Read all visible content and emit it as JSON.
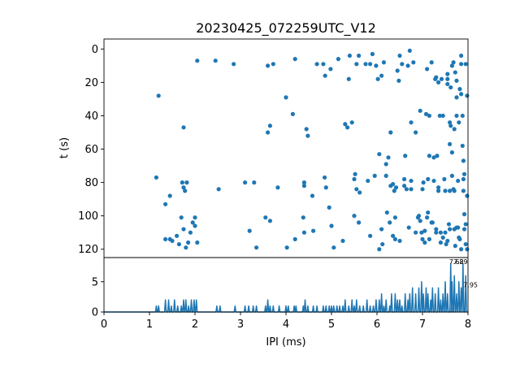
{
  "chart_data": [
    {
      "type": "scatter",
      "title": "20230425_072259UTC_V12",
      "xlabel": "",
      "ylabel": "t (s)",
      "xlim": [
        0,
        8
      ],
      "ylim": [
        125,
        -6
      ],
      "y_inverted": true,
      "yticks": [
        "0",
        "20",
        "40",
        "60",
        "80",
        "100",
        "120"
      ],
      "color": "#1f77b4",
      "points": [
        [
          1.2,
          28
        ],
        [
          1.15,
          77
        ],
        [
          1.35,
          93
        ],
        [
          1.45,
          88
        ],
        [
          1.7,
          101
        ],
        [
          1.75,
          108
        ],
        [
          1.6,
          112
        ],
        [
          1.35,
          114
        ],
        [
          1.45,
          114
        ],
        [
          1.5,
          115
        ],
        [
          1.65,
          117
        ],
        [
          1.8,
          119
        ],
        [
          1.85,
          116
        ],
        [
          1.9,
          110
        ],
        [
          1.95,
          104
        ],
        [
          2.0,
          101
        ],
        [
          2.0,
          106
        ],
        [
          2.05,
          116
        ],
        [
          1.75,
          47
        ],
        [
          1.72,
          80
        ],
        [
          1.82,
          80
        ],
        [
          1.75,
          83
        ],
        [
          1.78,
          85
        ],
        [
          2.05,
          7
        ],
        [
          2.45,
          7
        ],
        [
          2.85,
          9
        ],
        [
          2.52,
          84
        ],
        [
          3.1,
          80
        ],
        [
          3.3,
          80
        ],
        [
          3.2,
          109
        ],
        [
          3.35,
          119
        ],
        [
          3.55,
          101
        ],
        [
          3.65,
          103
        ],
        [
          3.6,
          10
        ],
        [
          3.72,
          9
        ],
        [
          3.6,
          50
        ],
        [
          3.65,
          46
        ],
        [
          3.82,
          83
        ],
        [
          4.0,
          29
        ],
        [
          4.15,
          39
        ],
        [
          4.2,
          6
        ],
        [
          4.02,
          119
        ],
        [
          4.2,
          114
        ],
        [
          4.38,
          101
        ],
        [
          4.4,
          110
        ],
        [
          4.4,
          80
        ],
        [
          4.4,
          82
        ],
        [
          4.45,
          48
        ],
        [
          4.48,
          52
        ],
        [
          4.58,
          88
        ],
        [
          4.6,
          109
        ],
        [
          4.68,
          9
        ],
        [
          4.82,
          9
        ],
        [
          4.86,
          16
        ],
        [
          4.85,
          77
        ],
        [
          4.88,
          83
        ],
        [
          4.95,
          95
        ],
        [
          5.0,
          106
        ],
        [
          5.05,
          119
        ],
        [
          4.98,
          12
        ],
        [
          5.15,
          6
        ],
        [
          5.25,
          115
        ],
        [
          5.3,
          45
        ],
        [
          5.35,
          47
        ],
        [
          5.4,
          4
        ],
        [
          5.38,
          18
        ],
        [
          5.45,
          44
        ],
        [
          5.5,
          100
        ],
        [
          5.5,
          78
        ],
        [
          5.55,
          9
        ],
        [
          5.52,
          75
        ],
        [
          5.55,
          84
        ],
        [
          5.6,
          4
        ],
        [
          5.62,
          86
        ],
        [
          5.6,
          104
        ],
        [
          5.75,
          9
        ],
        [
          5.8,
          79
        ],
        [
          5.85,
          9
        ],
        [
          5.85,
          112
        ],
        [
          5.9,
          3
        ],
        [
          5.95,
          76
        ],
        [
          5.98,
          10
        ],
        [
          6.02,
          18
        ],
        [
          6.05,
          63
        ],
        [
          6.1,
          16
        ],
        [
          6.1,
          108
        ],
        [
          6.05,
          120
        ],
        [
          6.12,
          117
        ],
        [
          6.15,
          8
        ],
        [
          6.2,
          69
        ],
        [
          6.2,
          76
        ],
        [
          6.22,
          98
        ],
        [
          6.25,
          65
        ],
        [
          6.28,
          104
        ],
        [
          6.3,
          50
        ],
        [
          6.3,
          82
        ],
        [
          6.35,
          81
        ],
        [
          6.35,
          112
        ],
        [
          6.38,
          85
        ],
        [
          6.4,
          101
        ],
        [
          6.4,
          114
        ],
        [
          6.42,
          83
        ],
        [
          6.45,
          13
        ],
        [
          6.48,
          19
        ],
        [
          6.5,
          115
        ],
        [
          6.5,
          4
        ],
        [
          6.55,
          9
        ],
        [
          6.6,
          78
        ],
        [
          6.6,
          82
        ],
        [
          6.62,
          64
        ],
        [
          6.65,
          84
        ],
        [
          6.68,
          10
        ],
        [
          6.7,
          107
        ],
        [
          6.72,
          1
        ],
        [
          6.75,
          79
        ],
        [
          6.75,
          84
        ],
        [
          6.75,
          44
        ],
        [
          6.8,
          8
        ],
        [
          6.85,
          50
        ],
        [
          6.85,
          110
        ],
        [
          6.9,
          101
        ],
        [
          6.92,
          100
        ],
        [
          6.95,
          37
        ],
        [
          6.95,
          103
        ],
        [
          6.98,
          110
        ],
        [
          7.0,
          114
        ],
        [
          7.02,
          80
        ],
        [
          7.0,
          84
        ],
        [
          7.05,
          109
        ],
        [
          7.05,
          116
        ],
        [
          7.08,
          39
        ],
        [
          7.1,
          101
        ],
        [
          7.1,
          12
        ],
        [
          7.12,
          78
        ],
        [
          7.12,
          98
        ],
        [
          7.15,
          64
        ],
        [
          7.15,
          40
        ],
        [
          7.15,
          114
        ],
        [
          7.2,
          8
        ],
        [
          7.2,
          104
        ],
        [
          7.22,
          104
        ],
        [
          7.25,
          65
        ],
        [
          7.25,
          79
        ],
        [
          7.28,
          18
        ],
        [
          7.3,
          17
        ],
        [
          7.3,
          108
        ],
        [
          7.3,
          110
        ],
        [
          7.32,
          64
        ],
        [
          7.35,
          83
        ],
        [
          7.35,
          85
        ],
        [
          7.35,
          20
        ],
        [
          7.38,
          40
        ],
        [
          7.4,
          110
        ],
        [
          7.4,
          116
        ],
        [
          7.42,
          18
        ],
        [
          7.45,
          113
        ],
        [
          7.45,
          40
        ],
        [
          7.48,
          78
        ],
        [
          7.5,
          85
        ],
        [
          7.5,
          110
        ],
        [
          7.52,
          117
        ],
        [
          7.55,
          15
        ],
        [
          7.55,
          18
        ],
        [
          7.55,
          21
        ],
        [
          7.55,
          115
        ],
        [
          7.58,
          105
        ],
        [
          7.6,
          44
        ],
        [
          7.6,
          57
        ],
        [
          7.6,
          85
        ],
        [
          7.6,
          108
        ],
        [
          7.62,
          23
        ],
        [
          7.62,
          46
        ],
        [
          7.65,
          10
        ],
        [
          7.65,
          62
        ],
        [
          7.65,
          76
        ],
        [
          7.68,
          8
        ],
        [
          7.68,
          84
        ],
        [
          7.7,
          48
        ],
        [
          7.7,
          85
        ],
        [
          7.7,
          108
        ],
        [
          7.72,
          118
        ],
        [
          7.72,
          14
        ],
        [
          7.75,
          19
        ],
        [
          7.75,
          29
        ],
        [
          7.75,
          40
        ],
        [
          7.75,
          107
        ],
        [
          7.78,
          79
        ],
        [
          7.78,
          107
        ],
        [
          7.8,
          44
        ],
        [
          7.8,
          113
        ],
        [
          7.82,
          24
        ],
        [
          7.82,
          114
        ],
        [
          7.85,
          4
        ],
        [
          7.85,
          9
        ],
        [
          7.85,
          27
        ],
        [
          7.85,
          120
        ],
        [
          7.88,
          40
        ],
        [
          7.88,
          58
        ],
        [
          7.9,
          67
        ],
        [
          7.9,
          85
        ],
        [
          7.9,
          78
        ],
        [
          7.92,
          75
        ],
        [
          7.92,
          99
        ],
        [
          7.92,
          108
        ],
        [
          7.95,
          105
        ],
        [
          7.95,
          117
        ],
        [
          7.95,
          9
        ],
        [
          7.98,
          120
        ],
        [
          7.98,
          28
        ],
        [
          7.98,
          88
        ]
      ]
    },
    {
      "type": "line",
      "xlabel": "IPI (ms)",
      "ylabel": "",
      "xlim": [
        0,
        8
      ],
      "ylim": [
        0,
        9
      ],
      "xticks": [
        "0",
        "1",
        "2",
        "3",
        "4",
        "5",
        "6",
        "7",
        "8"
      ],
      "yticks": [
        "0",
        "5"
      ],
      "color": "#1f77b4",
      "annotations": [
        {
          "x": 7.62,
          "y": 8.3,
          "text": "7.62"
        },
        {
          "x": 7.89,
          "y": 8.3,
          "text": "7.89"
        },
        {
          "x": 7.95,
          "y": 4.8,
          "text": "7.95"
        }
      ],
      "peaks": [
        [
          1.15,
          1
        ],
        [
          1.2,
          1
        ],
        [
          1.35,
          2
        ],
        [
          1.42,
          2
        ],
        [
          1.48,
          1
        ],
        [
          1.55,
          2
        ],
        [
          1.62,
          1
        ],
        [
          1.7,
          1
        ],
        [
          1.75,
          2
        ],
        [
          1.8,
          2
        ],
        [
          1.86,
          1
        ],
        [
          1.92,
          2
        ],
        [
          1.98,
          2
        ],
        [
          2.03,
          2
        ],
        [
          2.48,
          1
        ],
        [
          2.55,
          1
        ],
        [
          2.88,
          1
        ],
        [
          3.1,
          1
        ],
        [
          3.18,
          1
        ],
        [
          3.28,
          1
        ],
        [
          3.35,
          1
        ],
        [
          3.55,
          1
        ],
        [
          3.6,
          2
        ],
        [
          3.65,
          1
        ],
        [
          3.72,
          1
        ],
        [
          3.85,
          1
        ],
        [
          4.0,
          1
        ],
        [
          4.05,
          1
        ],
        [
          4.18,
          1
        ],
        [
          4.22,
          1
        ],
        [
          4.38,
          1
        ],
        [
          4.42,
          2
        ],
        [
          4.48,
          1
        ],
        [
          4.6,
          1
        ],
        [
          4.68,
          1
        ],
        [
          4.82,
          1
        ],
        [
          4.88,
          1
        ],
        [
          4.95,
          1
        ],
        [
          5.0,
          1
        ],
        [
          5.05,
          1
        ],
        [
          5.12,
          1
        ],
        [
          5.18,
          1
        ],
        [
          5.25,
          1
        ],
        [
          5.3,
          2
        ],
        [
          5.38,
          1
        ],
        [
          5.45,
          2
        ],
        [
          5.5,
          1
        ],
        [
          5.55,
          2
        ],
        [
          5.62,
          1
        ],
        [
          5.7,
          1
        ],
        [
          5.78,
          2
        ],
        [
          5.85,
          1
        ],
        [
          5.92,
          1
        ],
        [
          5.98,
          2
        ],
        [
          6.05,
          2
        ],
        [
          6.1,
          3
        ],
        [
          6.15,
          1
        ],
        [
          6.2,
          2
        ],
        [
          6.28,
          1
        ],
        [
          6.32,
          3
        ],
        [
          6.4,
          3
        ],
        [
          6.45,
          2
        ],
        [
          6.5,
          2
        ],
        [
          6.55,
          1
        ],
        [
          6.62,
          3
        ],
        [
          6.68,
          2
        ],
        [
          6.72,
          3
        ],
        [
          6.78,
          4
        ],
        [
          6.85,
          3
        ],
        [
          6.92,
          4
        ],
        [
          6.98,
          5
        ],
        [
          7.02,
          3
        ],
        [
          7.08,
          4
        ],
        [
          7.12,
          3
        ],
        [
          7.18,
          2
        ],
        [
          7.22,
          4
        ],
        [
          7.28,
          3
        ],
        [
          7.35,
          4
        ],
        [
          7.4,
          2
        ],
        [
          7.45,
          3
        ],
        [
          7.5,
          5
        ],
        [
          7.55,
          3
        ],
        [
          7.62,
          8
        ],
        [
          7.65,
          5
        ],
        [
          7.7,
          6
        ],
        [
          7.75,
          3
        ],
        [
          7.8,
          5
        ],
        [
          7.85,
          4
        ],
        [
          7.89,
          8
        ],
        [
          7.95,
          6
        ]
      ]
    }
  ]
}
